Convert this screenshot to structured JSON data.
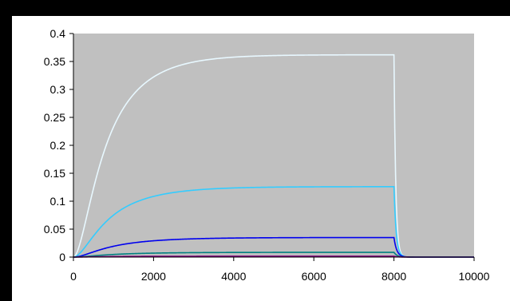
{
  "chart_data": {
    "type": "line",
    "title": "",
    "xlabel": "",
    "ylabel": "",
    "xlim": [
      0,
      10000
    ],
    "ylim": [
      0,
      0.4
    ],
    "x_ticks": [
      "0",
      "2000",
      "4000",
      "6000",
      "8000",
      "10000"
    ],
    "y_ticks": [
      "0",
      "0.05",
      "0.1",
      "0.15",
      "0.2",
      "0.25",
      "0.3",
      "0.35",
      "0.4"
    ],
    "grid": false,
    "legend": "none",
    "plot_background": "#c0c0c0",
    "series": [
      {
        "color": "#e8f8ff",
        "plateau": 0.362,
        "rise_tau": 900,
        "off_time": 8000,
        "decay_tau": 45,
        "points": [
          [
            0,
            0
          ],
          [
            500,
            0.155
          ],
          [
            1000,
            0.251
          ],
          [
            1500,
            0.3
          ],
          [
            2000,
            0.329
          ],
          [
            3000,
            0.352
          ],
          [
            4000,
            0.359
          ],
          [
            6000,
            0.362
          ],
          [
            8000,
            0.362
          ],
          [
            8000,
            0.11
          ],
          [
            8200,
            0.015
          ],
          [
            8400,
            0.002
          ],
          [
            10000,
            0
          ]
        ]
      },
      {
        "color": "#33ccff",
        "plateau": 0.126,
        "rise_tau": 1000,
        "off_time": 8000,
        "decay_tau": 55,
        "points": [
          [
            0,
            0
          ],
          [
            500,
            0.05
          ],
          [
            1000,
            0.08
          ],
          [
            2000,
            0.109
          ],
          [
            3000,
            0.12
          ],
          [
            4000,
            0.124
          ],
          [
            6000,
            0.126
          ],
          [
            8000,
            0.126
          ],
          [
            8200,
            0.033
          ],
          [
            8400,
            0.006
          ],
          [
            10000,
            0
          ]
        ]
      },
      {
        "color": "#0000ee",
        "plateau": 0.035,
        "rise_tau": 1100,
        "off_time": 8000,
        "decay_tau": 70,
        "points": [
          [
            0,
            0
          ],
          [
            1000,
            0.021
          ],
          [
            2000,
            0.029
          ],
          [
            3000,
            0.033
          ],
          [
            4000,
            0.034
          ],
          [
            8000,
            0.035
          ],
          [
            8200,
            0.02
          ],
          [
            8400,
            0.003
          ],
          [
            10000,
            0
          ]
        ]
      },
      {
        "color": "#008080",
        "plateau": 0.0085,
        "rise_tau": 1100,
        "off_time": 8000,
        "decay_tau": 80,
        "points": [
          [
            0,
            0
          ],
          [
            1000,
            0.005
          ],
          [
            2000,
            0.007
          ],
          [
            4000,
            0.008
          ],
          [
            8000,
            0.0085
          ],
          [
            8300,
            0.002
          ],
          [
            10000,
            0
          ]
        ]
      },
      {
        "color": "#800080",
        "plateau": 0.0015,
        "rise_tau": 900,
        "off_time": 8000,
        "decay_tau": 90,
        "points": [
          [
            0,
            0
          ],
          [
            2000,
            0.0013
          ],
          [
            8000,
            0.0015
          ],
          [
            8300,
            0.0005
          ],
          [
            10000,
            0
          ]
        ]
      }
    ]
  }
}
